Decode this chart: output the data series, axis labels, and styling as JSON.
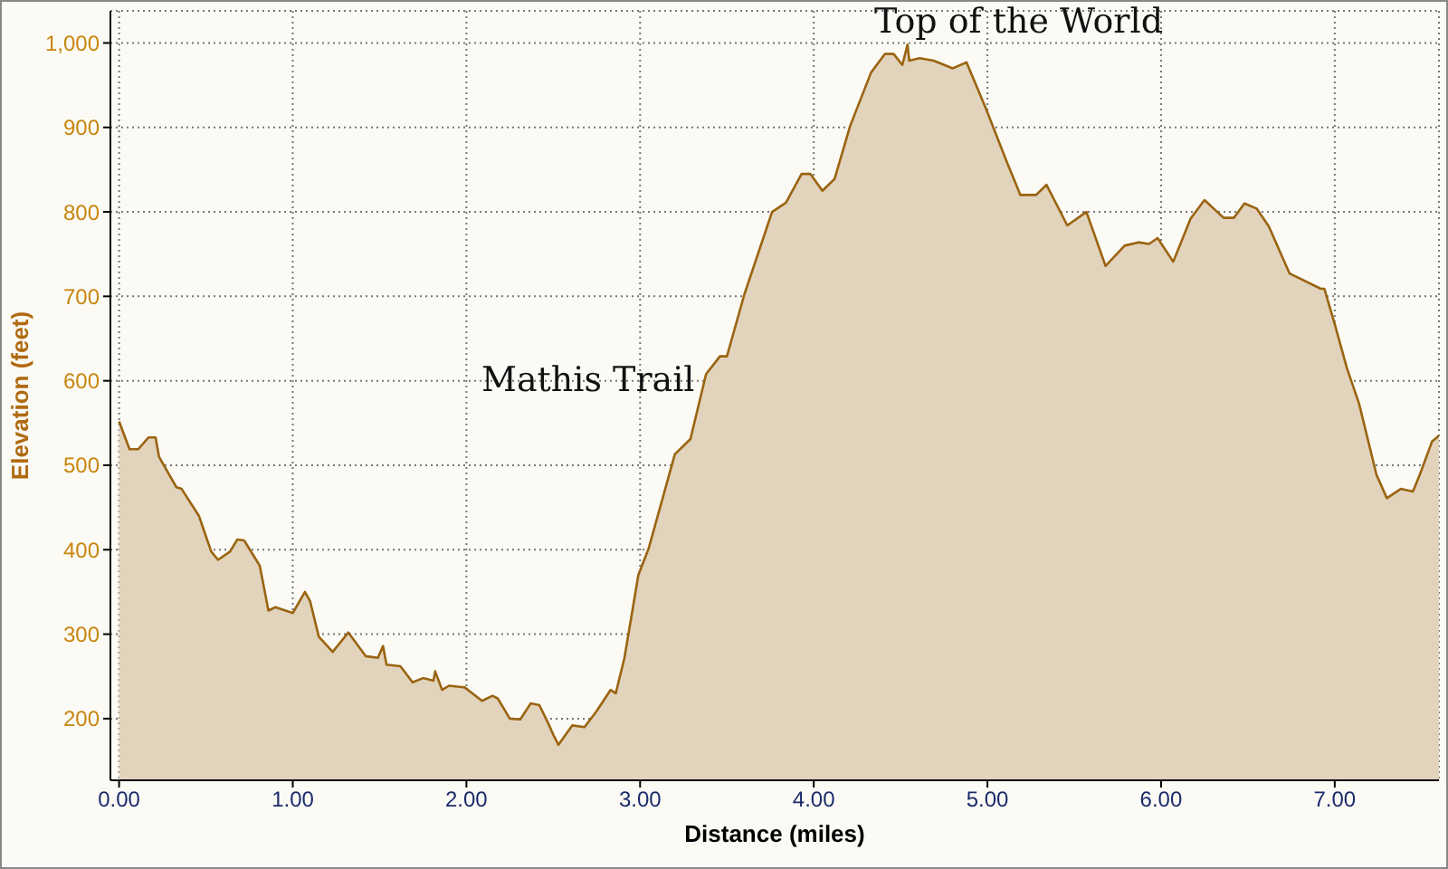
{
  "chart_data": {
    "type": "area",
    "xlabel": "Distance (miles)",
    "ylabel": "Elevation (feet)",
    "annotations": [
      "Mathis Trail",
      "Top of the World"
    ],
    "xlim": [
      -0.05,
      7.6
    ],
    "ylim": [
      127,
      1038
    ],
    "xticks": [
      {
        "value": 0,
        "label": "0.00"
      },
      {
        "value": 1,
        "label": "1.00"
      },
      {
        "value": 2,
        "label": "2.00"
      },
      {
        "value": 3,
        "label": "3.00"
      },
      {
        "value": 4,
        "label": "4.00"
      },
      {
        "value": 5,
        "label": "5.00"
      },
      {
        "value": 6,
        "label": "6.00"
      },
      {
        "value": 7,
        "label": "7.00"
      }
    ],
    "yticks": [
      200,
      300,
      400,
      500,
      600,
      700,
      800,
      900,
      {
        "value": 1000,
        "label": "1,000"
      }
    ],
    "grid": true,
    "legend": false,
    "marker": "none",
    "line_style": "solid",
    "series": [
      {
        "color": "#9a6410",
        "x": [
          0,
          0.06,
          0.11,
          0.17,
          0.21,
          0.23,
          0.33,
          0.36,
          0.46,
          0.53,
          0.57,
          0.64,
          0.68,
          0.72,
          0.81,
          0.86,
          0.9,
          1,
          1.07,
          1.1,
          1.15,
          1.23,
          1.32,
          1.42,
          1.49,
          1.52,
          1.54,
          1.62,
          1.69,
          1.75,
          1.81,
          1.82,
          1.86,
          1.9,
          1.99,
          2.09,
          2.15,
          2.18,
          2.25,
          2.31,
          2.37,
          2.42,
          2.47,
          2.5,
          2.53,
          2.61,
          2.68,
          2.75,
          2.83,
          2.86,
          2.91,
          2.99,
          3.05,
          3.13,
          3.2,
          3.29,
          3.38,
          3.46,
          3.5,
          3.6,
          3.76,
          3.84,
          3.93,
          3.98,
          4.05,
          4.12,
          4.21,
          4.33,
          4.41,
          4.46,
          4.51,
          4.54,
          4.55,
          4.61,
          4.69,
          4.8,
          4.88,
          4.99,
          5.11,
          5.19,
          5.28,
          5.34,
          5.46,
          5.57,
          5.68,
          5.79,
          5.87,
          5.93,
          5.98,
          6.07,
          6.17,
          6.25,
          6.36,
          6.42,
          6.48,
          6.55,
          6.62,
          6.74,
          6.92,
          6.94,
          7,
          7.07,
          7.14,
          7.24,
          7.3,
          7.38,
          7.45,
          7.49,
          7.56,
          7.6
        ],
        "values": [
          552,
          519,
          519,
          533,
          533,
          510,
          474,
          472,
          440,
          398,
          388,
          398,
          412,
          411,
          381,
          328,
          332,
          325,
          350,
          339,
          297,
          279,
          302,
          274,
          272,
          286,
          264,
          262,
          243,
          248,
          245,
          256,
          234,
          239,
          237,
          221,
          227,
          224,
          200,
          199,
          218,
          216,
          195,
          181,
          169,
          192,
          190,
          209,
          234,
          230,
          272,
          370,
          402,
          461,
          513,
          531,
          608,
          629,
          629,
          702,
          800,
          811,
          845,
          845,
          825,
          839,
          902,
          965,
          987,
          987,
          974,
          998,
          979,
          982,
          979,
          970,
          977,
          923,
          860,
          820,
          820,
          832,
          784,
          800,
          736,
          760,
          764,
          762,
          769,
          741,
          792,
          814,
          793,
          793,
          810,
          804,
          783,
          727,
          709,
          709,
          667,
          615,
          573,
          489,
          461,
          472,
          469,
          489,
          528,
          535
        ]
      }
    ]
  }
}
